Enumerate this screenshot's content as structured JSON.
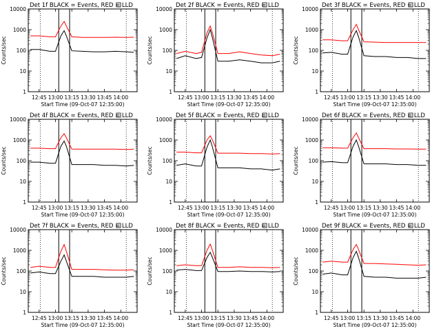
{
  "ytick_labels": [
    "10000",
    "1000",
    "100",
    "10",
    "1"
  ],
  "xtick_labels": [
    "12:45",
    "13:00",
    "13:15",
    "13:30",
    "13:45",
    "14:00"
  ],
  "ylabel": "Counts/sec",
  "xlabel": "Start Time (09-Oct-07 12:35:00)",
  "colors": {
    "events": "#000000",
    "lld": "#ff0000"
  },
  "chart_data": [
    {
      "type": "line",
      "title": "Det 1f BLACK = Events, RED = LLD",
      "xlabel": "Start Time (09-Oct-07 12:35:00)",
      "ylabel": "Counts/sec",
      "ylim": [
        1,
        10000
      ],
      "yscale": "log",
      "xlim": [
        "12:35",
        "14:15"
      ],
      "grid": false,
      "x": [
        "12:37",
        "12:45",
        "12:55",
        "13:00",
        "13:05",
        "13:08",
        "13:10",
        "13:15",
        "13:25",
        "13:35",
        "13:45",
        "13:55",
        "14:05",
        "14:12"
      ],
      "series": [
        {
          "name": "Events",
          "color": "#000000",
          "values": [
            110,
            110,
            90,
            90,
            500,
            900,
            500,
            95,
            90,
            85,
            85,
            90,
            85,
            80
          ]
        },
        {
          "name": "LLD",
          "color": "#ff0000",
          "values": [
            500,
            500,
            450,
            450,
            1500,
            2500,
            1500,
            450,
            420,
            420,
            420,
            430,
            420,
            430
          ]
        }
      ]
    },
    {
      "type": "line",
      "title": "Det 2f BLACK = Events, RED = LLD",
      "xlabel": "Start Time (09-Oct-07 12:35:00)",
      "ylabel": "Counts/sec",
      "ylim": [
        1,
        10000
      ],
      "yscale": "log",
      "xlim": [
        "12:35",
        "14:15"
      ],
      "grid": false,
      "x": [
        "12:37",
        "12:45",
        "12:55",
        "13:00",
        "13:05",
        "13:08",
        "13:10",
        "13:15",
        "13:25",
        "13:35",
        "13:45",
        "13:55",
        "14:05",
        "14:12"
      ],
      "series": [
        {
          "name": "Events",
          "color": "#000000",
          "values": [
            40,
            55,
            40,
            45,
            400,
            1000,
            400,
            30,
            30,
            35,
            30,
            25,
            25,
            30
          ]
        },
        {
          "name": "LLD",
          "color": "#ff0000",
          "values": [
            70,
            90,
            70,
            80,
            700,
            1500,
            700,
            70,
            70,
            85,
            70,
            60,
            55,
            65
          ]
        }
      ]
    },
    {
      "type": "line",
      "title": "Det 3f BLACK = Events, RED = LLD",
      "xlabel": "Start Time (09-Oct-07 12:35:00)",
      "ylabel": "Counts/sec",
      "ylim": [
        1,
        10000
      ],
      "yscale": "log",
      "xlim": [
        "12:35",
        "14:15"
      ],
      "grid": false,
      "x": [
        "12:37",
        "12:45",
        "12:55",
        "13:00",
        "13:05",
        "13:08",
        "13:10",
        "13:15",
        "13:25",
        "13:35",
        "13:45",
        "13:55",
        "14:05",
        "14:12"
      ],
      "series": [
        {
          "name": "Events",
          "color": "#000000",
          "values": [
            75,
            80,
            65,
            65,
            450,
            900,
            450,
            55,
            50,
            50,
            45,
            45,
            40,
            40
          ]
        },
        {
          "name": "LLD",
          "color": "#ff0000",
          "values": [
            320,
            320,
            290,
            290,
            1000,
            1800,
            1000,
            260,
            250,
            240,
            240,
            240,
            240,
            240
          ]
        }
      ]
    },
    {
      "type": "line",
      "title": "Det 4f BLACK = Events, RED = LLD",
      "xlabel": "Start Time (09-Oct-07 12:35:00)",
      "ylabel": "Counts/sec",
      "ylim": [
        1,
        10000
      ],
      "yscale": "log",
      "xlim": [
        "12:35",
        "14:15"
      ],
      "grid": false,
      "x": [
        "12:37",
        "12:45",
        "12:55",
        "13:00",
        "13:05",
        "13:08",
        "13:10",
        "13:15",
        "13:25",
        "13:35",
        "13:45",
        "13:55",
        "14:05",
        "14:12"
      ],
      "series": [
        {
          "name": "Events",
          "color": "#000000",
          "values": [
            85,
            85,
            75,
            75,
            500,
            900,
            500,
            65,
            65,
            65,
            60,
            60,
            55,
            60
          ]
        },
        {
          "name": "LLD",
          "color": "#ff0000",
          "values": [
            400,
            400,
            380,
            380,
            1300,
            2000,
            1300,
            360,
            360,
            360,
            360,
            360,
            350,
            360
          ]
        }
      ]
    },
    {
      "type": "line",
      "title": "Det 5f BLACK = Events, RED = LLD",
      "xlabel": "Start Time (09-Oct-07 12:35:00)",
      "ylabel": "Counts/sec",
      "ylim": [
        1,
        10000
      ],
      "yscale": "log",
      "xlim": [
        "12:35",
        "14:15"
      ],
      "grid": false,
      "x": [
        "12:37",
        "12:45",
        "12:55",
        "13:00",
        "13:05",
        "13:08",
        "13:10",
        "13:15",
        "13:25",
        "13:35",
        "13:45",
        "13:55",
        "14:05",
        "14:12"
      ],
      "series": [
        {
          "name": "Events",
          "color": "#000000",
          "values": [
            60,
            70,
            55,
            55,
            450,
            1000,
            450,
            45,
            45,
            45,
            40,
            40,
            35,
            40
          ]
        },
        {
          "name": "LLD",
          "color": "#ff0000",
          "values": [
            260,
            260,
            240,
            240,
            1000,
            1600,
            1000,
            230,
            230,
            230,
            220,
            220,
            210,
            220
          ]
        }
      ]
    },
    {
      "type": "line",
      "title": "Det 6f BLACK = Events, RED = LLD",
      "xlabel": "Start Time (09-Oct-07 12:35:00)",
      "ylabel": "Counts/sec",
      "ylim": [
        1,
        10000
      ],
      "yscale": "log",
      "xlim": [
        "12:35",
        "14:15"
      ],
      "grid": false,
      "x": [
        "12:37",
        "12:45",
        "12:55",
        "13:00",
        "13:05",
        "13:08",
        "13:10",
        "13:15",
        "13:25",
        "13:35",
        "13:45",
        "13:55",
        "14:05",
        "14:12"
      ],
      "series": [
        {
          "name": "Events",
          "color": "#000000",
          "values": [
            85,
            90,
            80,
            80,
            500,
            1000,
            500,
            70,
            70,
            70,
            65,
            65,
            60,
            60
          ]
        },
        {
          "name": "LLD",
          "color": "#ff0000",
          "values": [
            420,
            420,
            400,
            400,
            1300,
            2200,
            1300,
            380,
            380,
            380,
            370,
            370,
            360,
            360
          ]
        }
      ]
    },
    {
      "type": "line",
      "title": "Det 7f BLACK = Events, RED = LLD",
      "xlabel": "Start Time (09-Oct-07 12:35:00)",
      "ylabel": "Counts/sec",
      "ylim": [
        1,
        10000
      ],
      "yscale": "log",
      "xlim": [
        "12:35",
        "14:15"
      ],
      "grid": false,
      "x": [
        "12:37",
        "12:45",
        "12:55",
        "13:00",
        "13:05",
        "13:08",
        "13:10",
        "13:15",
        "13:25",
        "13:35",
        "13:45",
        "13:55",
        "14:05",
        "14:12"
      ],
      "series": [
        {
          "name": "Events",
          "color": "#000000",
          "values": [
            80,
            90,
            75,
            75,
            300,
            600,
            300,
            55,
            55,
            55,
            50,
            50,
            50,
            55
          ]
        },
        {
          "name": "LLD",
          "color": "#ff0000",
          "values": [
            150,
            170,
            150,
            150,
            900,
            1900,
            900,
            120,
            120,
            120,
            115,
            110,
            110,
            115
          ]
        }
      ]
    },
    {
      "type": "line",
      "title": "Det 8f BLACK = Events, RED = LLD",
      "xlabel": "Start Time (09-Oct-07 12:35:00)",
      "ylabel": "Counts/sec",
      "ylim": [
        1,
        10000
      ],
      "yscale": "log",
      "xlim": [
        "12:35",
        "14:15"
      ],
      "grid": false,
      "x": [
        "12:37",
        "12:45",
        "12:55",
        "13:00",
        "13:05",
        "13:08",
        "13:10",
        "13:15",
        "13:25",
        "13:35",
        "13:45",
        "13:55",
        "14:05",
        "14:12"
      ],
      "series": [
        {
          "name": "Events",
          "color": "#000000",
          "values": [
            110,
            120,
            105,
            105,
            450,
            800,
            450,
            95,
            95,
            100,
            95,
            95,
            90,
            95
          ]
        },
        {
          "name": "LLD",
          "color": "#ff0000",
          "values": [
            180,
            200,
            180,
            180,
            1000,
            2000,
            1000,
            150,
            150,
            160,
            150,
            150,
            145,
            150
          ]
        }
      ]
    },
    {
      "type": "line",
      "title": "Det 9f BLACK = Events, RED = LLD",
      "xlabel": "Start Time (09-Oct-07 12:35:00)",
      "ylabel": "Counts/sec",
      "ylim": [
        1,
        10000
      ],
      "yscale": "log",
      "xlim": [
        "12:35",
        "14:15"
      ],
      "grid": false,
      "x": [
        "12:37",
        "12:45",
        "12:55",
        "13:00",
        "13:05",
        "13:08",
        "13:10",
        "13:15",
        "13:25",
        "13:35",
        "13:45",
        "13:55",
        "14:05",
        "14:12"
      ],
      "series": [
        {
          "name": "Events",
          "color": "#000000",
          "values": [
            70,
            80,
            65,
            65,
            450,
            900,
            450,
            55,
            50,
            50,
            45,
            45,
            45,
            50
          ]
        },
        {
          "name": "LLD",
          "color": "#ff0000",
          "values": [
            270,
            300,
            270,
            270,
            1100,
            1900,
            1100,
            230,
            230,
            220,
            210,
            200,
            190,
            200
          ]
        }
      ]
    }
  ]
}
